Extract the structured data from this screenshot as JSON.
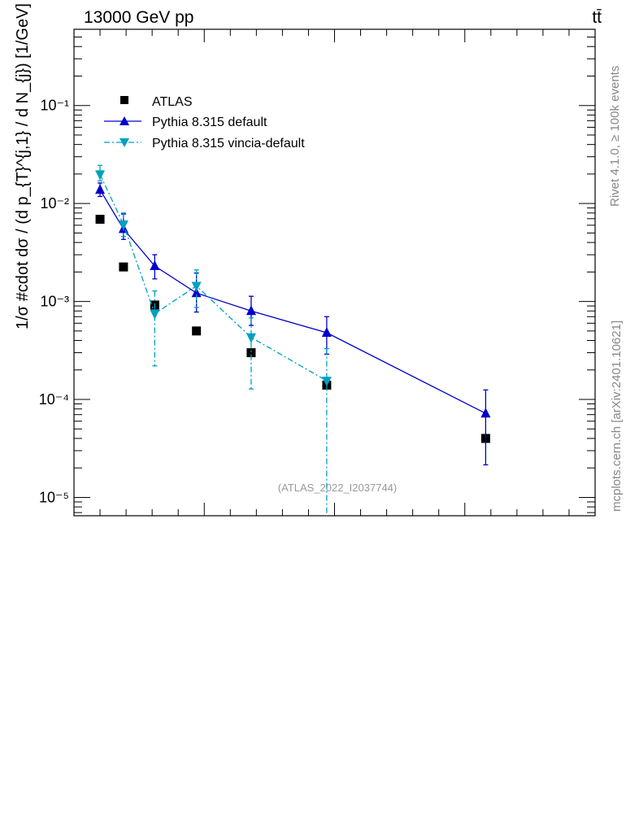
{
  "header": {
    "energy_label": "13000 GeV pp",
    "process_label": "tt̄"
  },
  "side_labels": {
    "rivet": "Rivet 4.1.0, ≥ 100k events",
    "mcplots": "mcplots.cern.ch [arXiv:2401.10621]"
  },
  "watermark": "(ATLAS_2022_I2037744)",
  "colors": {
    "atlas": "#000000",
    "default": "#0000cc",
    "vincia": "#00a0c0",
    "side_text": "#888888"
  },
  "chart_data": {
    "type": "scatter",
    "yscale": "log",
    "ylabel": "1/σ #cdot dσ / (d p_{T}^{j,1} / d N_{j}) [1/GeV]",
    "xlabel": "",
    "xlim": [
      0,
      100
    ],
    "ylim": [
      6.5e-06,
      0.6
    ],
    "y_ticks": [
      {
        "value": 1e-05,
        "label": "10⁻⁵"
      },
      {
        "value": 0.0001,
        "label": "10⁻⁴"
      },
      {
        "value": 0.001,
        "label": "10⁻³"
      },
      {
        "value": 0.01,
        "label": "10⁻²"
      },
      {
        "value": 0.1,
        "label": "10⁻¹"
      }
    ],
    "legend": {
      "position": "top-left",
      "entries": [
        "ATLAS",
        "Pythia 8.315 default",
        "Pythia 8.315 vincia-default"
      ]
    },
    "series": [
      {
        "name": "ATLAS",
        "style": "square",
        "x": [
          5,
          9.5,
          15.5,
          23.5,
          34,
          48.5,
          79
        ],
        "y": [
          0.0069,
          0.00225,
          0.00092,
          0.0005,
          0.0003,
          0.00014,
          4e-05
        ]
      },
      {
        "name": "Pythia 8.315 default",
        "style": "line-triangle-up",
        "x": [
          5,
          9.5,
          15.5,
          23.5,
          34,
          48.5,
          79
        ],
        "y": [
          0.0138,
          0.0055,
          0.0023,
          0.00122,
          0.0008,
          0.00048,
          7.2e-05
        ],
        "err_lo": [
          0.0118,
          0.0043,
          0.0017,
          0.00078,
          0.00057,
          0.00029,
          2.15e-05
        ],
        "err_hi": [
          0.0162,
          0.0078,
          0.003,
          0.00195,
          0.00113,
          0.0007,
          0.000125
        ]
      },
      {
        "name": "Pythia 8.315 vincia-default",
        "style": "dashdot-triangle-down",
        "x": [
          5,
          9.5,
          15.5,
          23.5,
          34,
          48.5
        ],
        "y": [
          0.0198,
          0.0061,
          0.00075,
          0.00144,
          0.00043,
          0.000155
        ],
        "err_lo": [
          0.017,
          0.0046,
          0.00022,
          0.00087,
          0.000128,
          6e-06
        ],
        "err_hi": [
          0.0245,
          0.008,
          0.00128,
          0.0021,
          0.00068,
          0.00033
        ]
      }
    ]
  }
}
